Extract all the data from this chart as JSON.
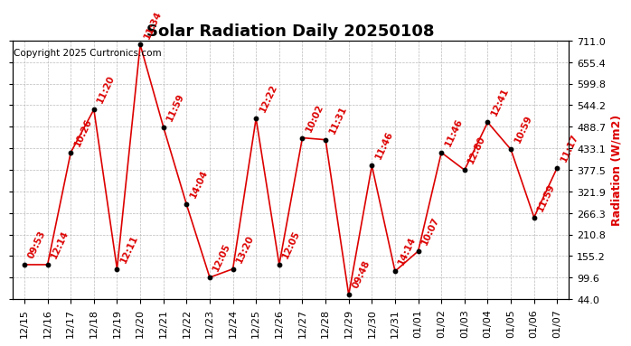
{
  "title": "Solar Radiation Daily 20250108",
  "ylabel_right": "Radiation (W/m2)",
  "copyright": "Copyright 2025 Curtronics.com",
  "line_color": "#dd0000",
  "marker_color": "#000000",
  "background_color": "#ffffff",
  "grid_color": "#aaaaaa",
  "ylim_min": 44.0,
  "ylim_max": 711.0,
  "yticks": [
    44.0,
    99.6,
    155.2,
    210.8,
    266.3,
    321.9,
    377.5,
    433.1,
    488.7,
    544.2,
    599.8,
    655.4,
    711.0
  ],
  "dates": [
    "12/15",
    "12/16",
    "12/17",
    "12/18",
    "12/19",
    "12/20",
    "12/21",
    "12/22",
    "12/23",
    "12/24",
    "12/25",
    "12/26",
    "12/27",
    "12/28",
    "12/29",
    "12/30",
    "12/31",
    "01/01",
    "01/02",
    "01/03",
    "01/04",
    "01/05",
    "01/06",
    "01/07"
  ],
  "values": [
    133,
    133,
    422,
    533,
    122,
    700,
    488,
    288,
    100,
    122,
    510,
    133,
    460,
    455,
    55,
    388,
    116,
    168,
    422,
    377,
    500,
    430,
    255,
    383
  ],
  "labels": [
    "09:53",
    "12:14",
    "10:26",
    "11:20",
    "12:11",
    "11:34",
    "11:59",
    "14:04",
    "12:05",
    "13:20",
    "12:22",
    "12:05",
    "10:02",
    "11:31",
    "09:48",
    "11:46",
    "14:14",
    "10:07",
    "11:46",
    "12:80",
    "12:41",
    "10:59",
    "11:59",
    "11:17"
  ],
  "title_fontsize": 13,
  "tick_fontsize": 8,
  "label_fontsize": 7.5,
  "ylabel_fontsize": 9,
  "copyright_fontsize": 7.5
}
